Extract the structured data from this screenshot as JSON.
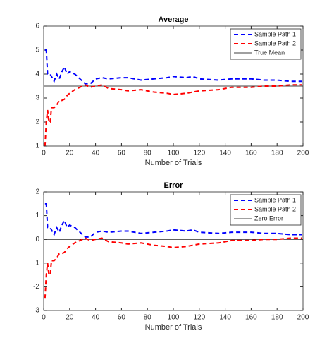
{
  "chart_data": [
    {
      "type": "line",
      "title": "Average",
      "xlabel": "Number of Trials",
      "legend": "upper right",
      "xlim": [
        0,
        200
      ],
      "xticks": [
        0,
        20,
        40,
        60,
        80,
        100,
        120,
        140,
        160,
        180,
        200
      ],
      "ylim": [
        1,
        6
      ],
      "yticks": [
        1,
        2,
        3,
        4,
        5,
        6
      ],
      "x": [
        1,
        2,
        3,
        4,
        5,
        6,
        8,
        10,
        12,
        14,
        16,
        18,
        20,
        24,
        28,
        32,
        36,
        40,
        45,
        50,
        60,
        65,
        75,
        85,
        95,
        100,
        110,
        115,
        120,
        135,
        145,
        160,
        170,
        180,
        190,
        199
      ],
      "series": [
        {
          "name": "Sample Path 1",
          "color": "#0000ff",
          "values": [
            5,
            5,
            4,
            4,
            4,
            3.9,
            3.7,
            4,
            3.8,
            4.1,
            4.3,
            4,
            4.1,
            4,
            3.8,
            3.6,
            3.6,
            3.8,
            3.85,
            3.8,
            3.85,
            3.85,
            3.75,
            3.8,
            3.85,
            3.9,
            3.85,
            3.9,
            3.8,
            3.75,
            3.8,
            3.8,
            3.75,
            3.75,
            3.7,
            3.7
          ]
        },
        {
          "name": "Sample Path 2",
          "color": "#ff0000",
          "values": [
            1,
            2,
            2.5,
            2,
            2,
            2.6,
            2.6,
            2.7,
            2.9,
            2.9,
            2.95,
            3.1,
            3.2,
            3.35,
            3.45,
            3.55,
            3.45,
            3.5,
            3.55,
            3.4,
            3.35,
            3.3,
            3.35,
            3.25,
            3.2,
            3.15,
            3.2,
            3.25,
            3.3,
            3.35,
            3.45,
            3.45,
            3.5,
            3.5,
            3.55,
            3.55
          ]
        }
      ],
      "reference": {
        "name": "True Mean",
        "value": 3.5,
        "color": "#000000"
      }
    },
    {
      "type": "line",
      "title": "Error",
      "xlabel": "Number of Trials",
      "legend": "upper right",
      "xlim": [
        0,
        200
      ],
      "xticks": [
        0,
        20,
        40,
        60,
        80,
        100,
        120,
        140,
        160,
        180,
        200
      ],
      "ylim": [
        -3,
        2
      ],
      "yticks": [
        -3,
        -2,
        -1,
        0,
        1,
        2
      ],
      "x": [
        1,
        2,
        3,
        4,
        5,
        6,
        8,
        10,
        12,
        14,
        16,
        18,
        20,
        24,
        28,
        32,
        36,
        40,
        45,
        50,
        60,
        65,
        75,
        85,
        95,
        100,
        110,
        115,
        120,
        135,
        145,
        160,
        170,
        180,
        190,
        199
      ],
      "series": [
        {
          "name": "Sample Path 1",
          "color": "#0000ff",
          "values": [
            1.5,
            1.5,
            0.5,
            0.5,
            0.5,
            0.4,
            0.2,
            0.5,
            0.3,
            0.6,
            0.8,
            0.5,
            0.6,
            0.5,
            0.3,
            0.1,
            0.1,
            0.3,
            0.35,
            0.3,
            0.35,
            0.35,
            0.25,
            0.3,
            0.35,
            0.4,
            0.35,
            0.4,
            0.3,
            0.25,
            0.3,
            0.3,
            0.25,
            0.25,
            0.2,
            0.2
          ]
        },
        {
          "name": "Sample Path 2",
          "color": "#ff0000",
          "values": [
            -2.5,
            -1.5,
            -1,
            -1.5,
            -1.5,
            -0.9,
            -0.9,
            -0.8,
            -0.6,
            -0.6,
            -0.55,
            -0.4,
            -0.3,
            -0.15,
            -0.05,
            0.05,
            -0.05,
            0,
            0.05,
            -0.1,
            -0.15,
            -0.2,
            -0.15,
            -0.25,
            -0.3,
            -0.35,
            -0.3,
            -0.25,
            -0.2,
            -0.15,
            -0.05,
            -0.05,
            0,
            0,
            0.05,
            0.05
          ]
        }
      ],
      "reference": {
        "name": "Zero Error",
        "value": 0,
        "color": "#000000"
      }
    }
  ]
}
